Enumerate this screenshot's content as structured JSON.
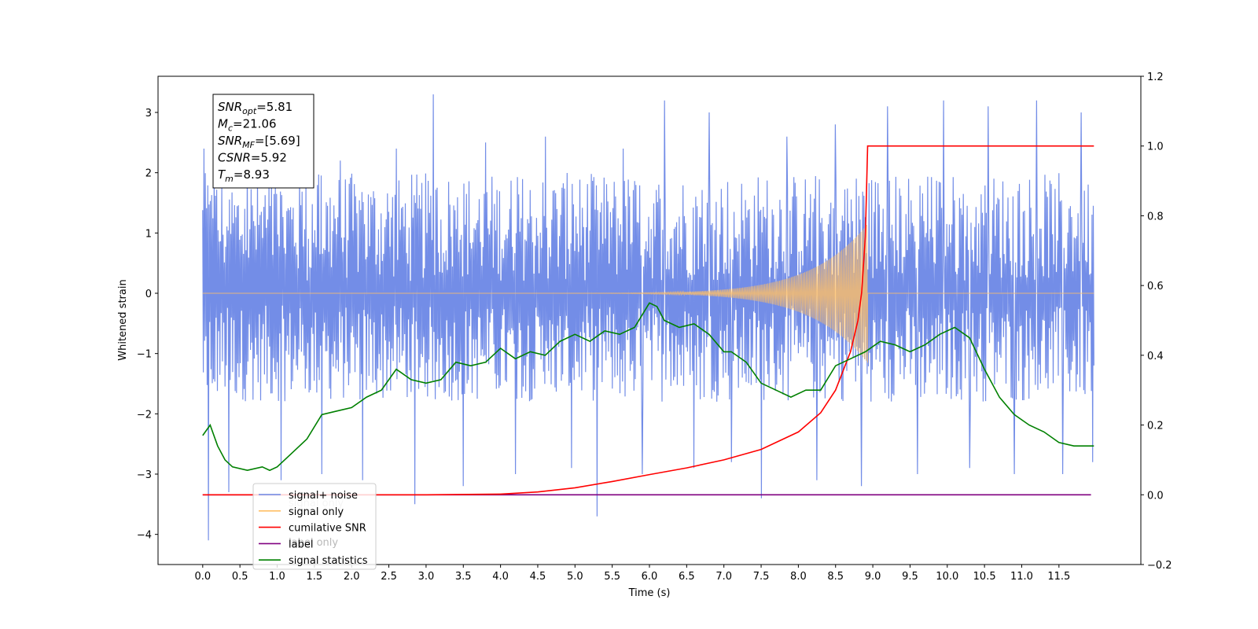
{
  "chart_data": {
    "type": "line",
    "xlabel": "Time (s)",
    "ylabel": "Whitened strain",
    "xlim": [
      -0.6,
      12.6
    ],
    "ylim": [
      -4.5,
      3.6
    ],
    "y2lim": [
      -0.2,
      1.2
    ],
    "x_ticks": [
      "0.0",
      "0.5",
      "1.0",
      "1.5",
      "2.0",
      "2.5",
      "3.0",
      "3.5",
      "4.0",
      "4.5",
      "5.0",
      "5.5",
      "6.0",
      "6.5",
      "7.0",
      "7.5",
      "8.0",
      "8.5",
      "9.0",
      "9.5",
      "10.0",
      "10.5",
      "11.0",
      "11.5"
    ],
    "y_ticks": [
      "3",
      "2",
      "1",
      "0",
      "−1",
      "−2",
      "−3",
      "−4"
    ],
    "y2_ticks": [
      "1.2",
      "1.0",
      "0.8",
      "0.6",
      "0.4",
      "0.2",
      "0.0",
      "−0.2"
    ],
    "annotation": [
      {
        "base": "SNR",
        "sub": "opt",
        "value": "=5.81"
      },
      {
        "base": "M",
        "sub": "c",
        "value": "=21.06"
      },
      {
        "base": "SNR",
        "sub": "MF",
        "value": "=[5.69]"
      },
      {
        "base": "CSNR",
        "sub": "",
        "value": "=5.92"
      },
      {
        "base": "T",
        "sub": "m",
        "value": "=8.93"
      }
    ],
    "legend": [
      {
        "label": "signal+ noise",
        "color": "#6b87e6"
      },
      {
        "label": "signal only",
        "color": "#ffbf66"
      },
      {
        "label": "cumilative SNR",
        "color": "#ff0000"
      },
      {
        "label": "label",
        "color": "#800080"
      },
      {
        "label": "signal statistics",
        "color": "#008000"
      }
    ],
    "legend_ghost": [
      {
        "label": "label only",
        "color": "#b0b0b0"
      },
      {
        "label": "signal only",
        "color": "#ffbf66"
      }
    ],
    "legend_position": "lower-left",
    "series": [
      {
        "name": "signal+ noise",
        "axis": "left",
        "color": "#6b87e6",
        "x_range": [
          0.0,
          11.97
        ],
        "band": [
          -1.8,
          2.0
        ],
        "spikes": [
          [
            0.02,
            2.4
          ],
          [
            0.08,
            -4.1
          ],
          [
            0.15,
            2.3
          ],
          [
            0.35,
            -3.3
          ],
          [
            0.6,
            2.1
          ],
          [
            1.05,
            -3.1
          ],
          [
            1.3,
            2.0
          ],
          [
            1.6,
            -3.0
          ],
          [
            1.85,
            2.2
          ],
          [
            2.15,
            -3.1
          ],
          [
            2.6,
            2.4
          ],
          [
            2.85,
            -3.5
          ],
          [
            3.1,
            3.3
          ],
          [
            3.5,
            -3.2
          ],
          [
            3.8,
            2.5
          ],
          [
            4.2,
            -3.0
          ],
          [
            4.6,
            2.6
          ],
          [
            4.95,
            -2.9
          ],
          [
            5.3,
            -3.7
          ],
          [
            5.65,
            2.4
          ],
          [
            5.9,
            -3.0
          ],
          [
            6.2,
            3.2
          ],
          [
            6.6,
            -2.9
          ],
          [
            6.8,
            3.0
          ],
          [
            7.1,
            -2.8
          ],
          [
            7.5,
            -3.4
          ],
          [
            7.85,
            2.6
          ],
          [
            8.25,
            -3.1
          ],
          [
            8.5,
            2.8
          ],
          [
            8.85,
            -3.2
          ],
          [
            9.2,
            3.1
          ],
          [
            9.6,
            -3.0
          ],
          [
            9.95,
            3.2
          ],
          [
            10.3,
            -2.9
          ],
          [
            10.55,
            3.1
          ],
          [
            10.9,
            -3.0
          ],
          [
            11.2,
            3.2
          ],
          [
            11.55,
            -3.0
          ],
          [
            11.8,
            3.0
          ],
          [
            11.95,
            -2.8
          ]
        ]
      },
      {
        "name": "signal only",
        "axis": "left",
        "color": "#ffbf66",
        "x_range": [
          0.0,
          8.93
        ],
        "amp_start": 0.0,
        "amp_end": 1.15
      },
      {
        "name": "cumilative SNR",
        "axis": "right",
        "color": "#ff0000",
        "x": [
          0.0,
          3.0,
          4.0,
          4.5,
          5.0,
          5.5,
          6.0,
          6.5,
          7.0,
          7.5,
          8.0,
          8.3,
          8.5,
          8.7,
          8.8,
          8.85,
          8.9,
          8.93,
          8.95,
          11.97
        ],
        "values": [
          0.0,
          0.0,
          0.002,
          0.008,
          0.02,
          0.038,
          0.058,
          0.077,
          0.1,
          0.13,
          0.18,
          0.235,
          0.3,
          0.41,
          0.5,
          0.58,
          0.74,
          1.0,
          1.0,
          1.0
        ]
      },
      {
        "name": "label",
        "axis": "right",
        "color": "#800080",
        "x": [
          0.0,
          11.93
        ],
        "values": [
          0.0,
          0.0
        ]
      },
      {
        "name": "signal statistics",
        "axis": "right",
        "color": "#008000",
        "x": [
          0.0,
          0.1,
          0.2,
          0.3,
          0.4,
          0.6,
          0.8,
          0.9,
          1.0,
          1.2,
          1.4,
          1.6,
          1.8,
          2.0,
          2.2,
          2.4,
          2.6,
          2.8,
          3.0,
          3.2,
          3.4,
          3.6,
          3.8,
          4.0,
          4.2,
          4.4,
          4.6,
          4.8,
          5.0,
          5.2,
          5.4,
          5.6,
          5.8,
          6.0,
          6.1,
          6.2,
          6.4,
          6.6,
          6.8,
          7.0,
          7.1,
          7.3,
          7.5,
          7.7,
          7.9,
          8.1,
          8.3,
          8.5,
          8.7,
          8.9,
          9.1,
          9.3,
          9.5,
          9.7,
          9.9,
          10.1,
          10.3,
          10.5,
          10.7,
          10.9,
          11.1,
          11.3,
          11.5,
          11.7,
          11.9,
          11.97
        ],
        "values": [
          0.17,
          0.2,
          0.14,
          0.1,
          0.08,
          0.07,
          0.08,
          0.07,
          0.08,
          0.12,
          0.16,
          0.23,
          0.24,
          0.25,
          0.28,
          0.3,
          0.36,
          0.33,
          0.32,
          0.33,
          0.38,
          0.37,
          0.38,
          0.42,
          0.39,
          0.41,
          0.4,
          0.44,
          0.46,
          0.44,
          0.47,
          0.46,
          0.48,
          0.55,
          0.54,
          0.5,
          0.48,
          0.49,
          0.46,
          0.41,
          0.41,
          0.38,
          0.32,
          0.3,
          0.28,
          0.3,
          0.3,
          0.37,
          0.39,
          0.41,
          0.44,
          0.43,
          0.41,
          0.43,
          0.46,
          0.48,
          0.45,
          0.36,
          0.28,
          0.23,
          0.2,
          0.18,
          0.15,
          0.14,
          0.14,
          0.14
        ]
      }
    ]
  }
}
